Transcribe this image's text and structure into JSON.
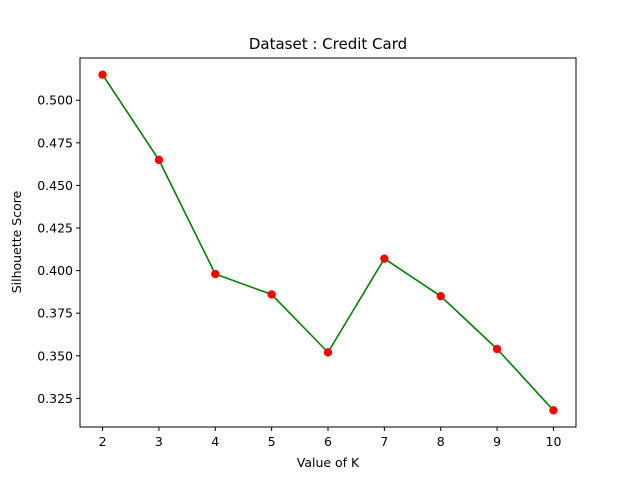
{
  "chart_data": {
    "type": "line",
    "title": "Dataset : Credit Card",
    "xlabel": "Value of K",
    "ylabel": "Silhouette Score",
    "x": [
      2,
      3,
      4,
      5,
      6,
      7,
      8,
      9,
      10
    ],
    "series": [
      {
        "values": [
          0.515,
          0.465,
          0.398,
          0.386,
          0.352,
          0.407,
          0.385,
          0.354,
          0.318
        ],
        "line_color": "#008000",
        "marker_color": "#ff0000"
      }
    ],
    "xticks": [
      2,
      3,
      4,
      5,
      6,
      7,
      8,
      9,
      10
    ],
    "xtick_labels": [
      "2",
      "3",
      "4",
      "5",
      "6",
      "7",
      "8",
      "9",
      "10"
    ],
    "yticks": [
      0.325,
      0.35,
      0.375,
      0.4,
      0.425,
      0.45,
      0.475,
      0.5
    ],
    "ytick_labels": [
      "0.325",
      "0.350",
      "0.375",
      "0.400",
      "0.425",
      "0.450",
      "0.475",
      "0.500"
    ],
    "xlim": [
      1.6,
      10.4
    ],
    "ylim": [
      0.3082,
      0.5248
    ],
    "grid": false
  }
}
